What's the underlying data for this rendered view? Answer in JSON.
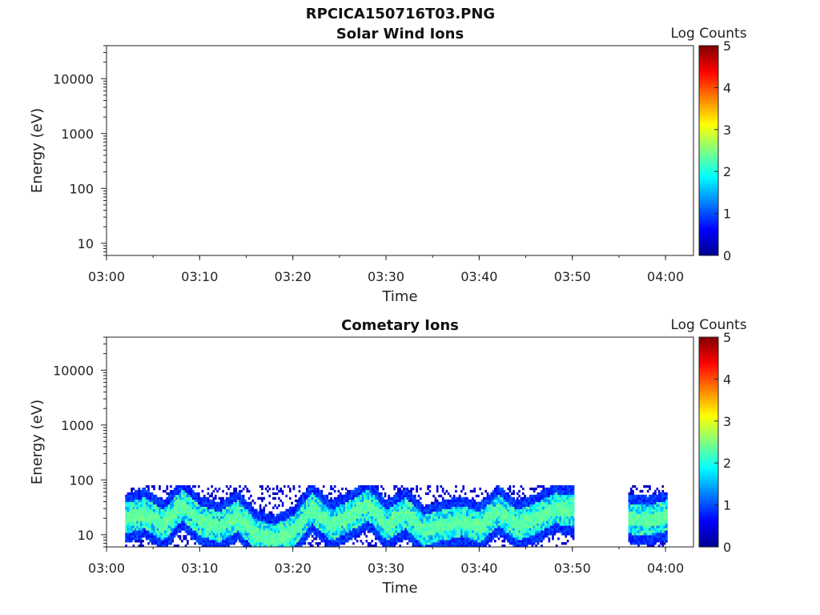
{
  "figure_title": "RPCICA150716T03.PNG",
  "chart_data": [
    {
      "type": "heatmap",
      "title": "Solar Wind Ions",
      "xlabel": "Time",
      "ylabel": "Energy (eV)",
      "x_ticks": [
        "03:00",
        "03:10",
        "03:20",
        "03:30",
        "03:40",
        "03:50",
        "04:00"
      ],
      "xlim": [
        "03:00",
        "04:03"
      ],
      "y_ticks": [
        10,
        100,
        1000,
        10000
      ],
      "ylim": [
        6,
        40000
      ],
      "y_scale": "log",
      "colorbar": {
        "label": "Log Counts",
        "ticks": [
          0,
          1,
          2,
          3,
          4,
          5
        ],
        "range": [
          0,
          5
        ],
        "colormap": "jet"
      },
      "data": []
    },
    {
      "type": "heatmap",
      "title": "Cometary Ions",
      "xlabel": "Time",
      "ylabel": "Energy (eV)",
      "x_ticks": [
        "03:00",
        "03:10",
        "03:20",
        "03:30",
        "03:40",
        "03:50",
        "04:00"
      ],
      "xlim": [
        "03:00",
        "04:03"
      ],
      "y_ticks": [
        10,
        100,
        1000,
        10000
      ],
      "ylim": [
        6,
        40000
      ],
      "y_scale": "log",
      "colorbar": {
        "label": "Log Counts",
        "ticks": [
          0,
          1,
          2,
          3,
          4,
          5
        ],
        "range": [
          0,
          5
        ],
        "colormap": "jet"
      },
      "data_coverage": [
        [
          "03:02",
          "03:50"
        ],
        [
          "03:56",
          "04:00"
        ]
      ],
      "energy_range_observed_eV": [
        6,
        80
      ],
      "ridge_energy_eV": [
        [
          "03:02",
          20
        ],
        [
          "03:04",
          25
        ],
        [
          "03:06",
          15
        ],
        [
          "03:08",
          35
        ],
        [
          "03:10",
          18
        ],
        [
          "03:12",
          14
        ],
        [
          "03:14",
          22
        ],
        [
          "03:16",
          10
        ],
        [
          "03:18",
          8
        ],
        [
          "03:20",
          12
        ],
        [
          "03:22",
          30
        ],
        [
          "03:24",
          15
        ],
        [
          "03:26",
          22
        ],
        [
          "03:28",
          35
        ],
        [
          "03:30",
          15
        ],
        [
          "03:32",
          25
        ],
        [
          "03:34",
          12
        ],
        [
          "03:36",
          15
        ],
        [
          "03:38",
          18
        ],
        [
          "03:40",
          14
        ],
        [
          "03:42",
          28
        ],
        [
          "03:44",
          15
        ],
        [
          "03:46",
          20
        ],
        [
          "03:48",
          30
        ],
        [
          "03:50",
          28
        ],
        [
          "03:56",
          20
        ],
        [
          "03:58",
          18
        ],
        [
          "04:00",
          22
        ]
      ],
      "peak_log_counts": 2.5
    }
  ]
}
